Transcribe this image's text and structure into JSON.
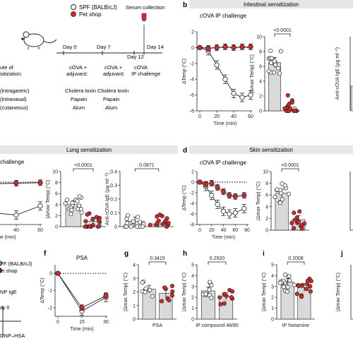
{
  "legend": {
    "spf": "SPF (BALB/cJ)",
    "pet": "Pet shop"
  },
  "colors": {
    "spf_fill": "#ffffff",
    "pet_fill": "#d8262b",
    "bar": "#d9d9d9",
    "ink": "#222222",
    "band": "#e6e6e6"
  },
  "schema": {
    "serum": "Serum collection",
    "days": [
      "Day 0",
      "Day 7",
      "Day 12",
      "Day 14"
    ],
    "steps": [
      "cOVA +",
      "adjuvant:",
      "cOVA +",
      "adjuvant:",
      "cOVA",
      "IP challenge"
    ],
    "route_title": [
      "ute of",
      "sitization:"
    ],
    "routes": [
      "(intragastric)",
      "(intranasal)",
      "(cutaneous)"
    ],
    "d0": [
      "Cholera toxin",
      "Papain",
      "Alum"
    ],
    "d7": [
      "Cholera toxin",
      "Papain",
      "Alum"
    ]
  },
  "panels": {
    "b": {
      "letter": "b",
      "band": "Intestinal sensitization",
      "title": "cOVA IP challenge"
    },
    "c": {
      "band": "Lung sensitization",
      "title": "challenge"
    },
    "d": {
      "letter": "d",
      "band": "Skin sensitization",
      "title": "cOVA IP challenge"
    },
    "f": {
      "letter": "f",
      "title": "PSA"
    },
    "g": {
      "letter": "g"
    },
    "h": {
      "letter": "h"
    },
    "i": {
      "letter": "i"
    },
    "j": {
      "letter": "j"
    },
    "e_partial": [
      "PF (BALB/cJ)",
      "et shop",
      "NP IgE",
      "ay 0",
      "DNP–HSA"
    ]
  },
  "chart_data": [
    {
      "id": "b-line",
      "type": "line",
      "xlabel": "Time (min)",
      "ylabel": "ΔTemp (°C)",
      "ylim": [
        -8,
        2
      ],
      "xticks": [
        0,
        20,
        40,
        60
      ],
      "yticks": [
        2,
        0,
        -2,
        -4,
        -6,
        -8
      ],
      "series": [
        {
          "name": "SPF (BALB/cJ)",
          "x": [
            0,
            10,
            20,
            30,
            40,
            50,
            60
          ],
          "y": [
            0,
            -0.4,
            -2.2,
            -4.0,
            -5.8,
            -6.3,
            -6.0
          ]
        },
        {
          "name": "Pet shop",
          "x": [
            0,
            10,
            20,
            30,
            40,
            50,
            60
          ],
          "y": [
            0,
            -0.1,
            0.0,
            0.1,
            0.0,
            0.1,
            0.1
          ]
        }
      ]
    },
    {
      "id": "b-bar",
      "type": "bar",
      "ylabel": "|Δmax Temp| (°C)",
      "ylim": [
        0,
        10
      ],
      "yticks": [
        0,
        2,
        4,
        6,
        8,
        10
      ],
      "pvalue": "<0.0001",
      "bars": [
        6.5,
        0.5
      ]
    },
    {
      "id": "b-ige",
      "type": "bar",
      "ylabel": "Anti-cOVA IgE (μg ml⁻¹)",
      "partial": true
    },
    {
      "id": "c-line",
      "type": "line",
      "xlabel": "Time (min)",
      "ylim": [
        -8,
        2
      ],
      "xticks": [
        20,
        40,
        60
      ],
      "series": [
        {
          "name": "SPF (BALB/cJ)",
          "x": [
            20,
            40,
            60
          ],
          "y": [
            -5.8,
            -6.2,
            -4.5
          ]
        },
        {
          "name": "Pet shop",
          "x": [
            20,
            40,
            60
          ],
          "y": [
            -0.3,
            -0.2,
            -0.1
          ]
        }
      ]
    },
    {
      "id": "c-bar",
      "type": "bar",
      "ylabel": "|Δmax Temp| (°C)",
      "ylim": [
        0,
        10
      ],
      "yticks": [
        0,
        2,
        4,
        6,
        8,
        10
      ],
      "pvalue": "<0.0001",
      "bars": [
        4.0,
        1.0
      ]
    },
    {
      "id": "c-ige",
      "type": "bar",
      "ylabel": "Anti-cOVA IgE (μg ml⁻¹)",
      "ylim": [
        0,
        0.4
      ],
      "yticks": [
        0,
        0.1,
        0.2,
        0.3,
        0.4
      ],
      "pvalue": "0.0871",
      "bars": [
        0.04,
        0.02
      ]
    },
    {
      "id": "d-line",
      "type": "line",
      "xlabel": "Time (min)",
      "ylabel": "ΔTemp (°C)",
      "ylim": [
        -8,
        2
      ],
      "xticks": [
        0,
        20,
        40,
        60,
        80
      ],
      "yticks": [
        2,
        0,
        -2,
        -4,
        -6,
        -8
      ],
      "series": [
        {
          "name": "SPF (BALB/cJ)",
          "x": [
            0,
            10,
            20,
            30,
            40,
            50,
            60,
            75
          ],
          "y": [
            0,
            -0.8,
            -2.5,
            -4.2,
            -5.5,
            -6.0,
            -5.8,
            -5.0
          ]
        },
        {
          "name": "Pet shop",
          "x": [
            0,
            10,
            20,
            30,
            40,
            50,
            60,
            75
          ],
          "y": [
            0,
            -0.4,
            -0.2,
            -1.0,
            -1.8,
            -2.5,
            -2.7,
            -2.5
          ]
        }
      ]
    },
    {
      "id": "d-bar",
      "type": "bar",
      "ylabel": "|Δmax Temp| (°C)",
      "ylim": [
        0,
        10
      ],
      "yticks": [
        0,
        2,
        4,
        6,
        8,
        10
      ],
      "pvalue": "<0.0001",
      "bars": [
        6.3,
        1.8
      ]
    },
    {
      "id": "f-line",
      "type": "line",
      "title": "PSA",
      "xlabel": "Time (min)",
      "ylabel": "ΔTemp (°C)",
      "ylim": [
        -2.5,
        0.5
      ],
      "xticks": [
        0,
        15,
        30
      ],
      "yticks": [
        0,
        -1,
        -2
      ],
      "series": [
        {
          "name": "SPF (BALB/cJ)",
          "x": [
            0,
            15,
            30
          ],
          "y": [
            0,
            -2.2,
            -1.4
          ]
        },
        {
          "name": "Pet shop",
          "x": [
            0,
            15,
            30
          ],
          "y": [
            0,
            -2.0,
            -1.3
          ]
        }
      ]
    },
    {
      "id": "g-bar",
      "type": "bar",
      "xlabel": "PSA",
      "ylabel": "|Δmax Temp| (°C)",
      "ylim": [
        0,
        4
      ],
      "yticks": [
        0,
        1,
        2,
        3,
        4
      ],
      "pvalue": "0.3415",
      "bars": [
        2.2,
        1.9
      ]
    },
    {
      "id": "h-bar",
      "type": "bar",
      "xlabel": "IP compound 48/80",
      "ylabel": "|Δmax Temp| (°C)",
      "ylim": [
        0,
        5
      ],
      "yticks": [
        0,
        1,
        2,
        3,
        4,
        5
      ],
      "pvalue": "0.2920",
      "bars": [
        2.6,
        2.1
      ]
    },
    {
      "id": "i-bar",
      "type": "bar",
      "xlabel": "IP histamine",
      "ylabel": "|Δmax Temp| (°C)",
      "ylim": [
        0,
        5
      ],
      "yticks": [
        0,
        1,
        2,
        3,
        4,
        5
      ],
      "pvalue": "0.2008",
      "bars": [
        3.4,
        2.9
      ]
    },
    {
      "id": "j-bar",
      "type": "bar",
      "xlabel": "IP",
      "ylabel": "|Δmax Temp| (°C)",
      "ylim": [
        0,
        5
      ],
      "partial": true,
      "pvalue": "0.",
      "bars": [
        3.8,
        null
      ]
    }
  ]
}
